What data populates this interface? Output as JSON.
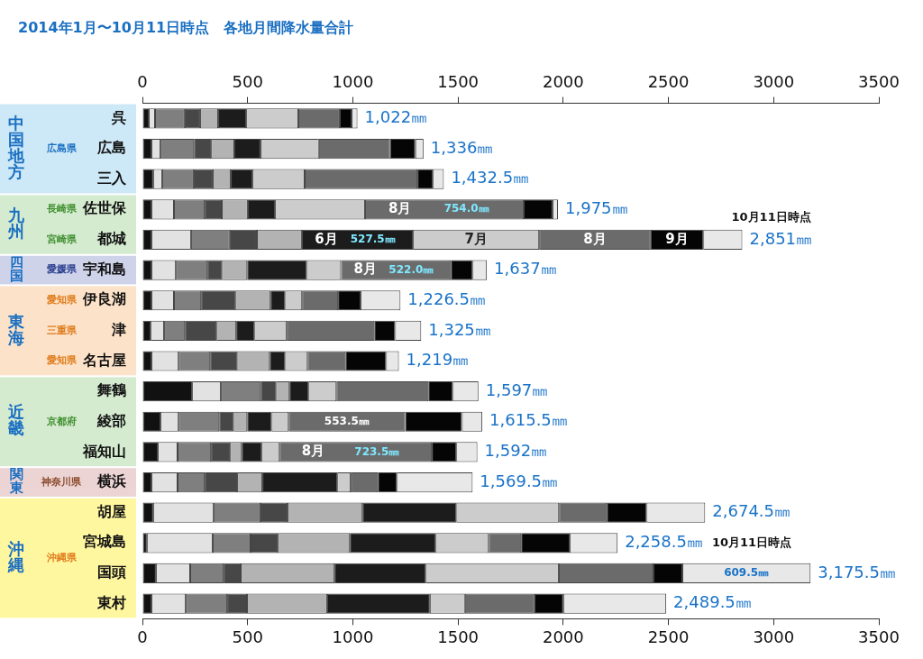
{
  "chart_data": {
    "type": "bar",
    "title": "2014年1月〜10月11日時点　各地月間降水量合計",
    "orientation": "horizontal",
    "stacked": true,
    "grid": false,
    "categories": [
      "呉",
      "広島",
      "三入",
      "佐世保",
      "都城",
      "宇和島",
      "伊良湖",
      "津",
      "名古屋",
      "舞鶴",
      "綾部",
      "福知山",
      "横浜",
      "胡屋",
      "宮城島",
      "国頭",
      "東村"
    ],
    "xlim": [
      0,
      3500
    ],
    "xticks": [
      0,
      500,
      1000,
      1500,
      2000,
      2500,
      3000,
      3500
    ],
    "series": [
      {
        "color": "#111111",
        "values": [
          30,
          43,
          51,
          43,
          43,
          43,
          43,
          39,
          43,
          236,
          86,
          73,
          43,
          51,
          21,
          64,
          43
        ]
      },
      {
        "color": "#e2e2e2",
        "values": [
          30,
          43,
          43,
          107,
          188,
          116,
          107,
          64,
          129,
          137,
          86,
          94,
          124,
          287,
          313,
          163,
          163
        ]
      },
      {
        "color": "#7f7f7f",
        "values": [
          141,
          159,
          150,
          146,
          184,
          150,
          129,
          99,
          150,
          189,
          193,
          159,
          129,
          223,
          180,
          159,
          197
        ]
      },
      {
        "color": "#474747",
        "values": [
          73,
          81,
          90,
          81,
          129,
          69,
          163,
          150,
          129,
          73,
          69,
          90,
          154,
          129,
          129,
          81,
          94
        ]
      },
      {
        "color": "#b3b3b3",
        "values": [
          86,
          111,
          86,
          124,
          214,
          120,
          167,
          94,
          154,
          64,
          64,
          56,
          120,
          356,
          343,
          446,
          381
        ]
      },
      {
        "color": "#1c1c1c",
        "values": [
          133,
          124,
          103,
          129,
          527.5,
          283,
          69,
          86,
          73,
          90,
          116,
          94,
          356,
          446,
          407,
          433,
          488
        ],
        "value_labels": [
          null,
          null,
          null,
          null,
          "527.5㎜",
          null,
          null,
          null,
          null,
          null,
          null,
          null,
          null,
          null,
          null,
          null,
          null
        ]
      },
      {
        "color": "#cccccc",
        "values": [
          248,
          278,
          248,
          428,
          600,
          163,
          81,
          154,
          107,
          133,
          81,
          86,
          64,
          488,
          253,
          633,
          167
        ]
      },
      {
        "color": "#6b6b6b",
        "values": [
          197,
          338,
          536,
          754.0,
          530,
          522.0,
          171,
          416,
          180,
          437,
          553.5,
          723.5,
          129,
          227,
          154,
          450,
          330
        ],
        "value_labels": [
          null,
          null,
          null,
          "754.0㎜",
          null,
          "522.0㎜",
          null,
          null,
          null,
          null,
          "553.5㎜",
          "723.5㎜",
          null,
          null,
          null,
          null,
          null
        ]
      },
      {
        "color": "#050505",
        "values": [
          56,
          120,
          73,
          137,
          250,
          103,
          107,
          99,
          193,
          116,
          270,
          116,
          90,
          189,
          231,
          137,
          137
        ]
      },
      {
        "color": "#e8e8e8",
        "values": [
          28,
          39,
          52.5,
          26,
          185.5,
          68,
          189.5,
          124,
          61,
          122,
          97,
          100.5,
          360.5,
          278.5,
          227.5,
          609.5,
          489.5
        ],
        "value_labels": [
          null,
          null,
          null,
          null,
          null,
          null,
          null,
          null,
          null,
          null,
          null,
          null,
          null,
          null,
          null,
          "609.5㎜",
          null
        ]
      }
    ],
    "totals": [
      1022,
      1336,
      1432.5,
      1975,
      2851,
      1637,
      1226.5,
      1325,
      1219,
      1597,
      1615.5,
      1592,
      1569.5,
      2674.5,
      2258.5,
      3175.5,
      2489.5
    ],
    "total_labels": [
      "1,022㎜",
      "1,336㎜",
      "1,432.5㎜",
      "1,975㎜",
      "2,851㎜",
      "1,637㎜",
      "1,226.5㎜",
      "1,325㎜",
      "1,219㎜",
      "1,597㎜",
      "1,615.5㎜",
      "1,592㎜",
      "1,569.5㎜",
      "2,674.5㎜",
      "2,258.5㎜",
      "3,175.5㎜",
      "2,489.5㎜"
    ],
    "annotations": [
      {
        "category": "佐世保",
        "segment": 7,
        "text": "8月"
      },
      {
        "category": "都城",
        "segment": 5,
        "text": "6月"
      },
      {
        "category": "都城",
        "segment": 6,
        "text": "7月"
      },
      {
        "category": "都城",
        "segment": 7,
        "text": "8月"
      },
      {
        "category": "都城",
        "segment": 8,
        "text": "9月"
      },
      {
        "category": "宇和島",
        "segment": 7,
        "text": "8月"
      },
      {
        "category": "福知山",
        "segment": 7,
        "text": "8月"
      }
    ],
    "notes": [
      {
        "category": "都城",
        "text": "10月11日時点"
      },
      {
        "category": "宮城島",
        "text": "10月11日時点"
      }
    ],
    "groups": [
      {
        "region": "中国地方",
        "members": [
          {
            "prefecture": "広島県",
            "stations": [
              "呉",
              "広島",
              "三入"
            ]
          }
        ]
      },
      {
        "region": "九州",
        "members": [
          {
            "prefecture": "長崎県",
            "stations": [
              "佐世保"
            ]
          },
          {
            "prefecture": "宮崎県",
            "stations": [
              "都城"
            ]
          }
        ]
      },
      {
        "region": "四国",
        "members": [
          {
            "prefecture": "愛媛県",
            "stations": [
              "宇和島"
            ]
          }
        ]
      },
      {
        "region": "東海",
        "members": [
          {
            "prefecture": "愛知県",
            "stations": [
              "伊良湖"
            ]
          },
          {
            "prefecture": "三重県",
            "stations": [
              "津"
            ]
          },
          {
            "prefecture": "愛知県",
            "stations": [
              "名古屋"
            ]
          }
        ]
      },
      {
        "region": "近畿",
        "members": [
          {
            "prefecture": "京都府",
            "stations": [
              "舞鶴",
              "綾部",
              "福知山"
            ]
          }
        ]
      },
      {
        "region": "関東",
        "members": [
          {
            "prefecture": "神奈川県",
            "stations": [
              "横浜"
            ]
          }
        ]
      },
      {
        "region": "沖縄",
        "members": [
          {
            "prefecture": "沖縄県",
            "stations": [
              "胡屋",
              "宮城島",
              "国頭",
              "東村"
            ]
          }
        ]
      }
    ]
  }
}
